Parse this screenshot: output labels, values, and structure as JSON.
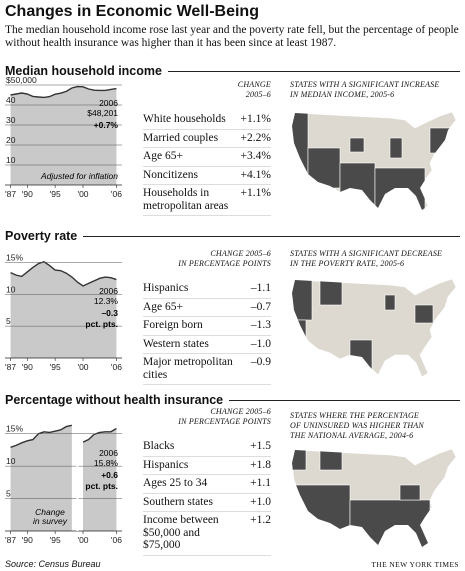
{
  "title": "Changes in Economic Well-Being",
  "subtitle": "The median household income rose last year and the poverty rate fell, but the percentage of people without health insurance was higher than it has been since at least 1987.",
  "source": "Source: Census Bureau",
  "credit": "THE NEW YORK TIMES",
  "sections": [
    {
      "table": {
        "header": [
          "CHANGE",
          "2005–6"
        ],
        "rows": [
          [
            "White households",
            "+1.1%"
          ],
          [
            "Married couples",
            "+2.2%"
          ],
          [
            "Age 65+",
            "+3.4%"
          ],
          [
            "Noncitizens",
            "+4.1%"
          ],
          [
            "Households in metropolitan areas",
            "+1.1%"
          ]
        ]
      },
      "map_title": [
        "STATES WITH A SIGNIFICANT INCREASE",
        "IN MEDIAN INCOME, 2005-6"
      ]
    },
    {
      "table": {
        "header": [
          "CHANGE 2005–6",
          "IN PERCENTAGE POINTS"
        ],
        "rows": [
          [
            "Hispanics",
            "–1.1"
          ],
          [
            "Age 65+",
            "–0.7"
          ],
          [
            "Foreign born",
            "–1.3"
          ],
          [
            "Western states",
            "–1.0"
          ],
          [
            "Major metropolitan cities",
            "–0.9"
          ]
        ]
      },
      "map_title": [
        "STATES WITH A SIGNIFICANT DECREASE",
        "IN THE POVERTY RATE, 2005-6"
      ]
    },
    {
      "table": {
        "header": [
          "CHANGE 2005–6",
          "IN PERCENTAGE POINTS"
        ],
        "rows": [
          [
            "Blacks",
            "+1.5"
          ],
          [
            "Hispanics",
            "+1.8"
          ],
          [
            "Ages 25 to 34",
            "+1.1"
          ],
          [
            "Southern states",
            "+1.0"
          ],
          [
            "Income between $50,000 and $75,000",
            "+1.2"
          ]
        ]
      },
      "map_title": [
        "STATES WHERE THE PERCENTAGE",
        "OF UNINSURED WAS HIGHER THAN",
        "THE NATIONAL AVERAGE, 2004-6"
      ]
    }
  ],
  "chart_data": [
    {
      "type": "area",
      "title": "Median household income",
      "x": [
        1987,
        1988,
        1989,
        1990,
        1991,
        1992,
        1993,
        1994,
        1995,
        1996,
        1997,
        1998,
        1999,
        2000,
        2001,
        2002,
        2003,
        2004,
        2005,
        2006
      ],
      "values": [
        45.0,
        45.5,
        46.0,
        45.5,
        44.3,
        44.0,
        43.8,
        44.2,
        45.4,
        45.9,
        46.8,
        48.5,
        49.2,
        49.1,
        48.0,
        47.4,
        47.3,
        47.3,
        47.8,
        48.2
      ],
      "xlim": [
        1986,
        2007
      ],
      "ylim": [
        0,
        50
      ],
      "xticks": [
        {
          "value": 1987,
          "label": "'87"
        },
        {
          "value": 1990,
          "label": "'90"
        },
        {
          "value": 1995,
          "label": "'95"
        },
        {
          "value": 2000,
          "label": "'00"
        },
        {
          "value": 2006,
          "label": "'06"
        }
      ],
      "yticks": [
        {
          "value": 50,
          "label": "$50,000"
        },
        40,
        30,
        20,
        10
      ],
      "color": "#c9c9c9",
      "line_color": "#333333",
      "grid": true,
      "annotations": [
        "2006",
        "$48,201",
        "+0.7%",
        "Adjusted for inflation"
      ]
    },
    {
      "type": "area",
      "title": "Poverty rate",
      "x": [
        1987,
        1988,
        1989,
        1990,
        1991,
        1992,
        1993,
        1994,
        1995,
        1996,
        1997,
        1998,
        1999,
        2000,
        2001,
        2002,
        2003,
        2004,
        2005,
        2006
      ],
      "values": [
        13.4,
        13.0,
        12.8,
        13.5,
        14.2,
        14.8,
        15.1,
        14.5,
        13.8,
        13.7,
        13.3,
        12.7,
        11.9,
        11.3,
        11.7,
        12.1,
        12.5,
        12.7,
        12.6,
        12.3
      ],
      "xlim": [
        1986,
        2007
      ],
      "ylim": [
        0,
        16
      ],
      "xticks": [
        {
          "value": 1987,
          "label": "'87"
        },
        {
          "value": 1990,
          "label": "'90"
        },
        {
          "value": 1995,
          "label": "'95"
        },
        {
          "value": 2000,
          "label": "'00"
        },
        {
          "value": 2006,
          "label": "'06"
        }
      ],
      "yticks": [
        {
          "value": 15,
          "label": "15%"
        },
        10,
        5
      ],
      "color": "#c9c9c9",
      "line_color": "#333333",
      "grid": true,
      "annotations": [
        "2006",
        "12.3%",
        "–0.3",
        "pct. pts."
      ]
    },
    {
      "type": "area",
      "title": "Percentage without health insurance",
      "x": [
        1987,
        1988,
        1989,
        1990,
        1991,
        1992,
        1993,
        1994,
        1995,
        1996,
        1997,
        1998,
        1999,
        2000,
        2001,
        2002,
        2003,
        2004,
        2005,
        2006
      ],
      "values": [
        12.9,
        13.2,
        13.6,
        13.9,
        14.1,
        15.0,
        15.3,
        15.2,
        15.4,
        15.6,
        16.1,
        16.3,
        null,
        13.7,
        14.1,
        14.9,
        15.2,
        15.3,
        15.3,
        15.8
      ],
      "xlim": [
        1986,
        2007
      ],
      "ylim": [
        0,
        16.5
      ],
      "xticks": [
        {
          "value": 1987,
          "label": "'87"
        },
        {
          "value": 1990,
          "label": "'90"
        },
        {
          "value": 1995,
          "label": "'95"
        },
        {
          "value": 2000,
          "label": "'00"
        },
        {
          "value": 2006,
          "label": "'06"
        }
      ],
      "yticks": [
        {
          "value": 15,
          "label": "15%"
        },
        10,
        5
      ],
      "color": "#c9c9c9",
      "line_color": "#333333",
      "grid": true,
      "annotations": [
        "2006",
        "15.8%",
        "+0.6",
        "pct. pts.",
        "Change",
        "in survey"
      ]
    }
  ]
}
